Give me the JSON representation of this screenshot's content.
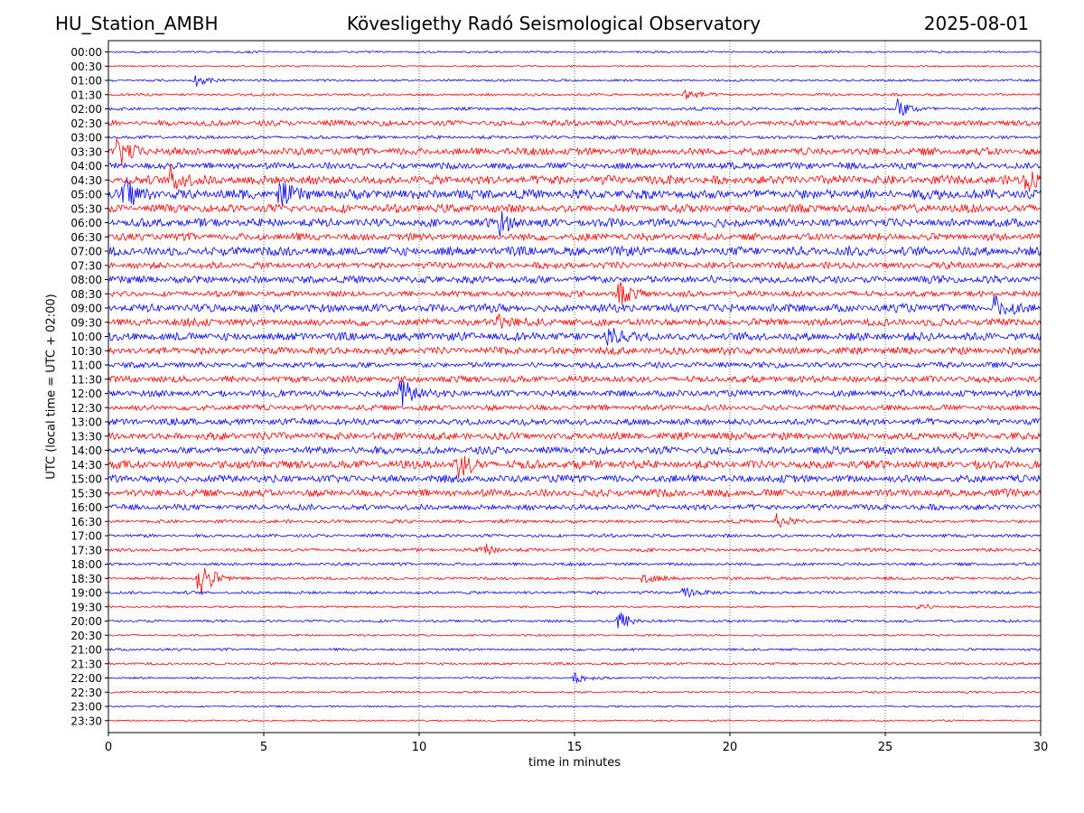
{
  "header": {
    "station": "HU_Station_AMBH",
    "observatory": "Kövesligethy Radó Seismological Observatory",
    "date": "2025-08-01"
  },
  "chart_data": {
    "type": "line",
    "title": "Kövesligethy Radó Seismological Observatory",
    "xlabel": "time in minutes",
    "ylabel": "UTC (local time = UTC + 02:00)",
    "xlim": [
      0,
      30
    ],
    "x_ticks": [
      0,
      5,
      10,
      15,
      20,
      25,
      30
    ],
    "grid": "vertical dotted lines at 5-minute ticks",
    "row_labels": [
      "00:00",
      "00:30",
      "01:00",
      "01:30",
      "02:00",
      "02:30",
      "03:00",
      "03:30",
      "04:00",
      "04:30",
      "05:00",
      "05:30",
      "06:00",
      "06:30",
      "07:00",
      "07:30",
      "08:00",
      "08:30",
      "09:00",
      "09:30",
      "10:00",
      "10:30",
      "11:00",
      "11:30",
      "12:00",
      "12:30",
      "13:00",
      "13:30",
      "14:00",
      "14:30",
      "15:00",
      "15:30",
      "16:00",
      "16:30",
      "17:00",
      "17:30",
      "18:00",
      "18:30",
      "19:00",
      "19:30",
      "20:00",
      "20:30",
      "21:00",
      "21:30",
      "22:00",
      "22:30",
      "23:00",
      "23:30"
    ],
    "colors": [
      "#0000ff",
      "#ff0000"
    ],
    "noise_levels": [
      0.12,
      0.1,
      0.14,
      0.16,
      0.18,
      0.35,
      0.2,
      0.45,
      0.4,
      0.55,
      0.6,
      0.5,
      0.5,
      0.45,
      0.55,
      0.4,
      0.45,
      0.35,
      0.5,
      0.45,
      0.5,
      0.45,
      0.35,
      0.4,
      0.4,
      0.35,
      0.4,
      0.45,
      0.45,
      0.5,
      0.45,
      0.45,
      0.35,
      0.2,
      0.2,
      0.2,
      0.18,
      0.18,
      0.18,
      0.12,
      0.15,
      0.12,
      0.15,
      0.15,
      0.12,
      0.12,
      0.1,
      0.1
    ],
    "events": [
      {
        "row": 2,
        "minute": 2.8,
        "amplitude": 0.8
      },
      {
        "row": 3,
        "minute": 18.5,
        "amplitude": 1.2
      },
      {
        "row": 4,
        "minute": 25.4,
        "amplitude": 1.6
      },
      {
        "row": 7,
        "minute": 0.3,
        "amplitude": 2.5
      },
      {
        "row": 9,
        "minute": 2.0,
        "amplitude": 2.2
      },
      {
        "row": 9,
        "minute": 29.5,
        "amplitude": 2.0
      },
      {
        "row": 10,
        "minute": 0.5,
        "amplitude": 2.4
      },
      {
        "row": 10,
        "minute": 5.5,
        "amplitude": 1.8
      },
      {
        "row": 12,
        "minute": 12.5,
        "amplitude": 2.0
      },
      {
        "row": 17,
        "minute": 16.4,
        "amplitude": 2.0
      },
      {
        "row": 18,
        "minute": 28.5,
        "amplitude": 1.8
      },
      {
        "row": 19,
        "minute": 12.5,
        "amplitude": 1.6
      },
      {
        "row": 20,
        "minute": 16.0,
        "amplitude": 1.8
      },
      {
        "row": 24,
        "minute": 9.4,
        "amplitude": 2.6
      },
      {
        "row": 29,
        "minute": 11.2,
        "amplitude": 2.4
      },
      {
        "row": 33,
        "minute": 21.5,
        "amplitude": 1.1
      },
      {
        "row": 35,
        "minute": 12.0,
        "amplitude": 1.2
      },
      {
        "row": 37,
        "minute": 2.9,
        "amplitude": 3.6
      },
      {
        "row": 37,
        "minute": 17.2,
        "amplitude": 1.0
      },
      {
        "row": 38,
        "minute": 18.5,
        "amplitude": 0.9
      },
      {
        "row": 39,
        "minute": 26.0,
        "amplitude": 0.8
      },
      {
        "row": 40,
        "minute": 16.4,
        "amplitude": 1.8
      },
      {
        "row": 44,
        "minute": 15.0,
        "amplitude": 0.8
      }
    ]
  }
}
